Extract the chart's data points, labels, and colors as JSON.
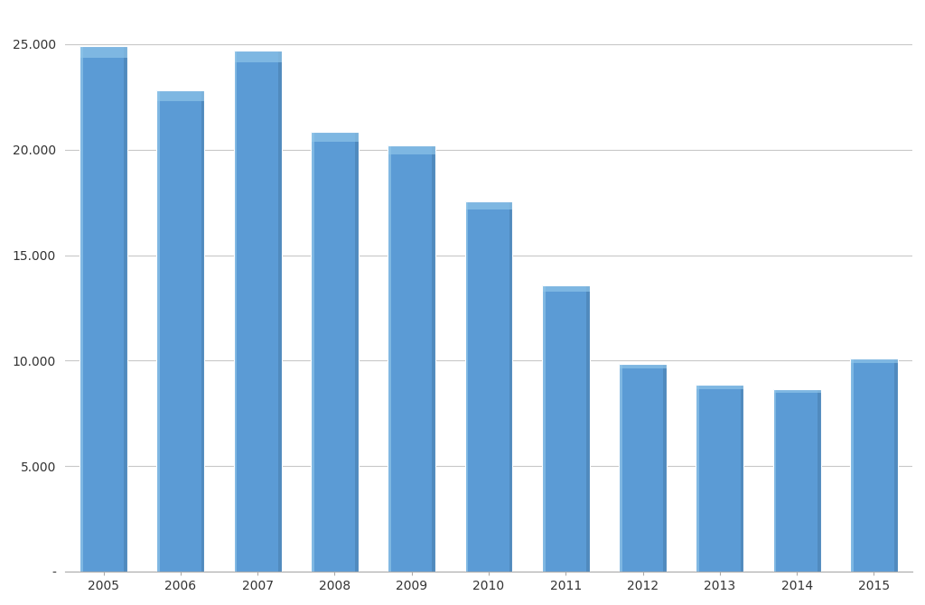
{
  "categories": [
    "2005",
    "2006",
    "2007",
    "2008",
    "2009",
    "2010",
    "2011",
    "2012",
    "2013",
    "2014",
    "2015"
  ],
  "values": [
    24900,
    22800,
    24700,
    20850,
    20200,
    17550,
    13550,
    9850,
    8850,
    8650,
    10100
  ],
  "bar_color_main": "#5b9bd5",
  "bar_color_light": "#7fb3e0",
  "bar_color_dark": "#4a80b0",
  "bar_color_highlight": "#8ec4e8",
  "background_color": "#ffffff",
  "plot_bg_color": "#ffffff",
  "grid_color": "#c8c8c8",
  "ylim": [
    0,
    26500
  ],
  "yticks": [
    0,
    5000,
    10000,
    15000,
    20000,
    25000
  ],
  "ytick_labels": [
    "-",
    "5.000",
    "10.000",
    "15.000",
    "20.000",
    "25.000"
  ],
  "tick_fontsize": 10,
  "bar_width": 0.62
}
